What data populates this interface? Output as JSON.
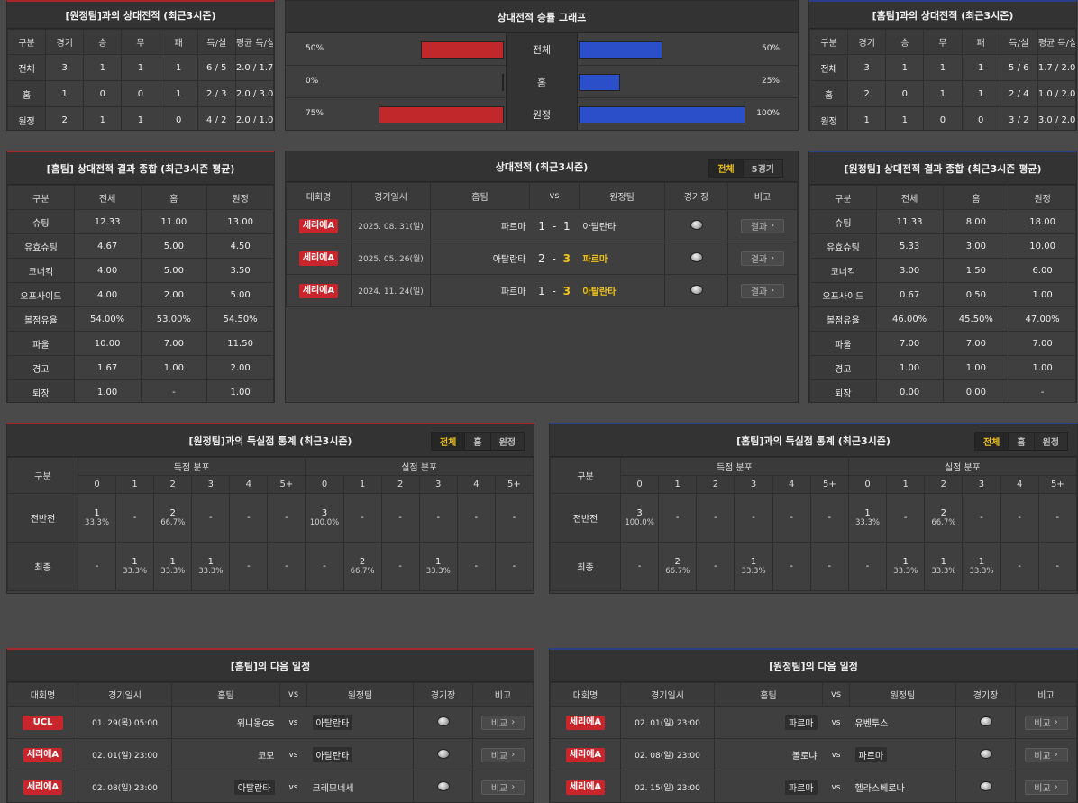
{
  "away_h2h": {
    "title": "[원정팀]과의 상대전적 (최근3시즌)",
    "headers": [
      "구분",
      "경기",
      "승",
      "무",
      "패",
      "득/실",
      "평균 득/실"
    ],
    "rows": [
      [
        "전체",
        "3",
        "1",
        "1",
        "1",
        "6 / 5",
        "2.0 / 1.7"
      ],
      [
        "홈",
        "1",
        "0",
        "0",
        "1",
        "2 / 3",
        "2.0 / 3.0"
      ],
      [
        "원정",
        "2",
        "1",
        "1",
        "0",
        "4 / 2",
        "2.0 / 1.0"
      ]
    ]
  },
  "graph": {
    "title": "상대전적 승률 그래프",
    "rows": [
      {
        "label": "전체",
        "left": "50%",
        "right": "50%",
        "left_val": 50,
        "right_val": 50
      },
      {
        "label": "홈",
        "left": "0%",
        "right": "25%",
        "left_val": 0,
        "right_val": 25
      },
      {
        "label": "원정",
        "left": "75%",
        "right": "100%",
        "left_val": 75,
        "right_val": 100
      }
    ],
    "colors": {
      "left": "#c0282c",
      "right": "#2a4fc8"
    }
  },
  "home_h2h": {
    "title": "[홈팀]과의 상대전적 (최근3시즌)",
    "headers": [
      "구분",
      "경기",
      "승",
      "무",
      "패",
      "득/실",
      "평균 득/실"
    ],
    "rows": [
      [
        "전체",
        "3",
        "1",
        "1",
        "1",
        "5 / 6",
        "1.7 / 2.0"
      ],
      [
        "홈",
        "2",
        "0",
        "1",
        "1",
        "2 / 4",
        "1.0 / 2.0"
      ],
      [
        "원정",
        "1",
        "1",
        "0",
        "0",
        "3 / 2",
        "3.0 / 2.0"
      ]
    ]
  },
  "home_summary": {
    "title": "[홈팀] 상대전적 결과 종합 (최근3시즌 평균)",
    "headers": [
      "구분",
      "전체",
      "홈",
      "원정"
    ],
    "rows": [
      [
        "슈팅",
        "12.33",
        "11.00",
        "13.00"
      ],
      [
        "유효슈팅",
        "4.67",
        "5.00",
        "4.50"
      ],
      [
        "코너킥",
        "4.00",
        "5.00",
        "3.50"
      ],
      [
        "오프사이드",
        "4.00",
        "2.00",
        "5.00"
      ],
      [
        "볼점유율",
        "54.00%",
        "53.00%",
        "54.50%"
      ],
      [
        "파울",
        "10.00",
        "7.00",
        "11.50"
      ],
      [
        "경고",
        "1.67",
        "1.00",
        "2.00"
      ],
      [
        "퇴장",
        "1.00",
        "-",
        "1.00"
      ]
    ]
  },
  "matches": {
    "title": "상대전적 (최근3시즌)",
    "tabs": [
      "전체",
      "5경기"
    ],
    "headers": [
      "대회명",
      "경기일시",
      "홈팀",
      "vs",
      "원정팀",
      "경기장",
      "비고"
    ],
    "rows": [
      {
        "league": "세리에A",
        "date": "2025. 08. 31(일)",
        "home": "파르마",
        "hs": "1",
        "sep": "-",
        "as": "1",
        "away": "아탈란타",
        "win": "none",
        "note": "결과"
      },
      {
        "league": "세리에A",
        "date": "2025. 05. 26(월)",
        "home": "아탈란타",
        "hs": "2",
        "sep": "-",
        "as": "3",
        "away": "파르마",
        "win": "away",
        "note": "결과"
      },
      {
        "league": "세리에A",
        "date": "2024. 11. 24(일)",
        "home": "파르마",
        "hs": "1",
        "sep": "-",
        "as": "3",
        "away": "아탈란타",
        "win": "away",
        "note": "결과"
      }
    ]
  },
  "away_summary": {
    "title": "[원정팀] 상대전적 결과 종합 (최근3시즌 평균)",
    "headers": [
      "구분",
      "전체",
      "홈",
      "원정"
    ],
    "rows": [
      [
        "슈팅",
        "11.33",
        "8.00",
        "18.00"
      ],
      [
        "유효슈팅",
        "5.33",
        "3.00",
        "10.00"
      ],
      [
        "코너킥",
        "3.00",
        "1.50",
        "6.00"
      ],
      [
        "오프사이드",
        "0.67",
        "0.50",
        "1.00"
      ],
      [
        "볼점유율",
        "46.00%",
        "45.50%",
        "47.00%"
      ],
      [
        "파울",
        "7.00",
        "7.00",
        "7.00"
      ],
      [
        "경고",
        "1.00",
        "1.00",
        "1.00"
      ],
      [
        "퇴장",
        "0.00",
        "0.00",
        "-"
      ]
    ]
  },
  "score_left": {
    "title": "[원정팀]과의 득실점 통계 (최근3시즌)",
    "tabs": [
      "전체",
      "홈",
      "원정"
    ],
    "col_head": "구분",
    "grp1": "득점 분포",
    "grp2": "실점 분포",
    "cols": [
      "0",
      "1",
      "2",
      "3",
      "4",
      "5+"
    ],
    "rows": [
      {
        "label": "전반전",
        "cells": [
          [
            "1",
            "33.3%"
          ],
          [
            "-",
            ""
          ],
          [
            "2",
            "66.7%"
          ],
          [
            "-",
            ""
          ],
          [
            "-",
            ""
          ],
          [
            "-",
            ""
          ],
          [
            "3",
            "100.0%"
          ],
          [
            "-",
            ""
          ],
          [
            "-",
            ""
          ],
          [
            "-",
            ""
          ],
          [
            "-",
            ""
          ],
          [
            "-",
            ""
          ]
        ]
      },
      {
        "label": "최종",
        "cells": [
          [
            "-",
            ""
          ],
          [
            "1",
            "33.3%"
          ],
          [
            "1",
            "33.3%"
          ],
          [
            "1",
            "33.3%"
          ],
          [
            "-",
            ""
          ],
          [
            "-",
            ""
          ],
          [
            "-",
            ""
          ],
          [
            "2",
            "66.7%"
          ],
          [
            "-",
            ""
          ],
          [
            "1",
            "33.3%"
          ],
          [
            "-",
            ""
          ],
          [
            "-",
            ""
          ]
        ]
      }
    ]
  },
  "score_right": {
    "title": "[홈팀]과의 득실점 통계 (최근3시즌)",
    "tabs": [
      "전체",
      "홈",
      "원정"
    ],
    "col_head": "구분",
    "grp1": "득점 분포",
    "grp2": "실점 분포",
    "cols": [
      "0",
      "1",
      "2",
      "3",
      "4",
      "5+"
    ],
    "rows": [
      {
        "label": "전반전",
        "cells": [
          [
            "3",
            "100.0%"
          ],
          [
            "-",
            ""
          ],
          [
            "-",
            ""
          ],
          [
            "-",
            ""
          ],
          [
            "-",
            ""
          ],
          [
            "-",
            ""
          ],
          [
            "1",
            "33.3%"
          ],
          [
            "-",
            ""
          ],
          [
            "2",
            "66.7%"
          ],
          [
            "-",
            ""
          ],
          [
            "-",
            ""
          ],
          [
            "-",
            ""
          ]
        ]
      },
      {
        "label": "최종",
        "cells": [
          [
            "-",
            ""
          ],
          [
            "2",
            "66.7%"
          ],
          [
            "-",
            ""
          ],
          [
            "1",
            "33.3%"
          ],
          [
            "-",
            ""
          ],
          [
            "-",
            ""
          ],
          [
            "-",
            ""
          ],
          [
            "1",
            "33.3%"
          ],
          [
            "1",
            "33.3%"
          ],
          [
            "1",
            "33.3%"
          ],
          [
            "-",
            ""
          ],
          [
            "-",
            ""
          ]
        ]
      }
    ]
  },
  "home_next": {
    "title": "[홈팀]의 다음 일정",
    "headers": [
      "대회명",
      "경기일시",
      "홈팀",
      "vs",
      "원정팀",
      "경기장",
      "비고"
    ],
    "rows": [
      {
        "league": "UCL",
        "date": "01. 29(목) 05:00",
        "home": "위니옹GS",
        "vs": "vs",
        "away": "아탈란타",
        "hl": "away",
        "note": "비교"
      },
      {
        "league": "세리에A",
        "date": "02. 01(일) 23:00",
        "home": "코모",
        "vs": "vs",
        "away": "아탈란타",
        "hl": "away",
        "note": "비교"
      },
      {
        "league": "세리에A",
        "date": "02. 08(일) 23:00",
        "home": "아탈란타",
        "vs": "vs",
        "away": "크레모네세",
        "hl": "home",
        "note": "비교"
      }
    ]
  },
  "away_next": {
    "title": "[원정팀]의 다음 일정",
    "headers": [
      "대회명",
      "경기일시",
      "홈팀",
      "vs",
      "원정팀",
      "경기장",
      "비고"
    ],
    "rows": [
      {
        "league": "세리에A",
        "date": "02. 01(일) 23:00",
        "home": "파르마",
        "vs": "vs",
        "away": "유벤투스",
        "hl": "home",
        "note": "비교"
      },
      {
        "league": "세리에A",
        "date": "02. 08(일) 23:00",
        "home": "볼로냐",
        "vs": "vs",
        "away": "파르마",
        "hl": "away",
        "note": "비교"
      },
      {
        "league": "세리에A",
        "date": "02. 15(일) 23:00",
        "home": "파르마",
        "vs": "vs",
        "away": "헬라스베로나",
        "hl": "home",
        "note": "비교"
      }
    ]
  }
}
